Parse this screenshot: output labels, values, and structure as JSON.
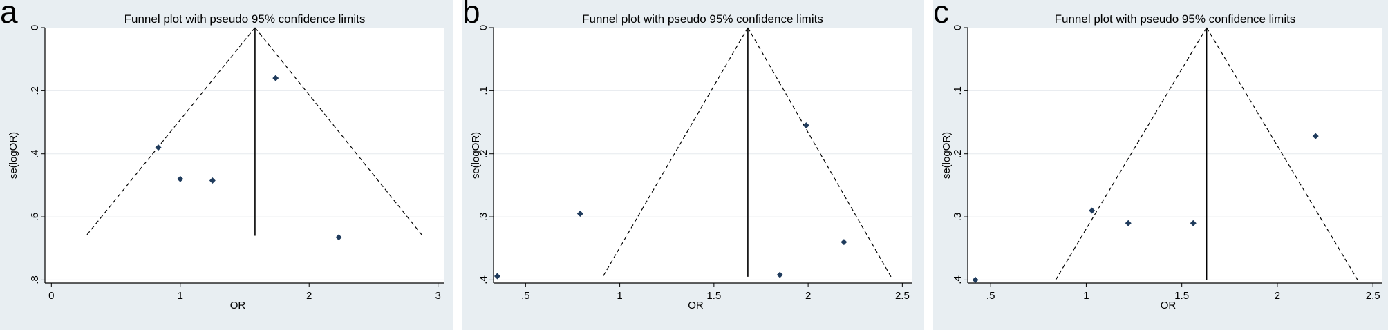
{
  "figure": {
    "panels": [
      {
        "letter": "a"
      },
      {
        "letter": "b"
      },
      {
        "letter": "c"
      }
    ]
  },
  "chart_data": [
    {
      "type": "scatter",
      "title": "Funnel plot with pseudo 95% confidence limits",
      "xlabel": "OR",
      "ylabel": "se(logOR)",
      "xlim": [
        -0.05,
        3.05
      ],
      "ylim": [
        0,
        0.81
      ],
      "y_reversed": true,
      "xticks": [
        0,
        1,
        2,
        3
      ],
      "xtick_labels": [
        "0",
        "1",
        "2",
        "3"
      ],
      "yticks": [
        0,
        0.2,
        0.4,
        0.6,
        0.8
      ],
      "ytick_labels": [
        "0",
        ".2",
        ".4",
        ".6",
        ".8"
      ],
      "grid": true,
      "pooled_estimate": 1.58,
      "ci_limits": {
        "se_max": 0.66,
        "lower_x_at_max": 0.27,
        "upper_x_at_max": 2.88
      },
      "points": [
        {
          "x": 1.74,
          "y": 0.16
        },
        {
          "x": 0.83,
          "y": 0.38
        },
        {
          "x": 1.0,
          "y": 0.48
        },
        {
          "x": 1.25,
          "y": 0.485
        },
        {
          "x": 2.23,
          "y": 0.665
        }
      ]
    },
    {
      "type": "scatter",
      "title": "Funnel plot with pseudo 95% confidence limits",
      "xlabel": "OR",
      "ylabel": "se(logOR)",
      "xlim": [
        0.33,
        2.55
      ],
      "ylim": [
        0,
        0.405
      ],
      "y_reversed": true,
      "xticks": [
        0.5,
        1,
        1.5,
        2,
        2.5
      ],
      "xtick_labels": [
        ".5",
        "1",
        "1.5",
        "2",
        "2.5"
      ],
      "yticks": [
        0,
        0.1,
        0.2,
        0.3,
        0.4
      ],
      "ytick_labels": [
        "0",
        ".1",
        ".2",
        ".3",
        ".4"
      ],
      "grid": true,
      "pooled_estimate": 1.68,
      "ci_limits": {
        "se_max": 0.395,
        "lower_x_at_max": 0.91,
        "upper_x_at_max": 2.44
      },
      "points": [
        {
          "x": 1.99,
          "y": 0.155
        },
        {
          "x": 0.79,
          "y": 0.295
        },
        {
          "x": 2.19,
          "y": 0.34
        },
        {
          "x": 1.85,
          "y": 0.392
        },
        {
          "x": 0.35,
          "y": 0.394
        }
      ]
    },
    {
      "type": "scatter",
      "title": "Funnel plot with pseudo 95% confidence limits",
      "xlabel": "OR",
      "ylabel": "se(logOR)",
      "xlim": [
        0.38,
        2.55
      ],
      "ylim": [
        0,
        0.405
      ],
      "y_reversed": true,
      "xticks": [
        0.5,
        1,
        1.5,
        2,
        2.5
      ],
      "xtick_labels": [
        ".5",
        "1",
        "1.5",
        "2",
        "2.5"
      ],
      "yticks": [
        0,
        0.1,
        0.2,
        0.3,
        0.4
      ],
      "ytick_labels": [
        "0",
        ".1",
        ".2",
        ".3",
        ".4"
      ],
      "grid": true,
      "pooled_estimate": 1.63,
      "ci_limits": {
        "se_max": 0.4,
        "lower_x_at_max": 0.84,
        "upper_x_at_max": 2.42
      },
      "points": [
        {
          "x": 2.2,
          "y": 0.172
        },
        {
          "x": 1.03,
          "y": 0.29
        },
        {
          "x": 1.22,
          "y": 0.31
        },
        {
          "x": 1.56,
          "y": 0.31
        },
        {
          "x": 0.42,
          "y": 0.4
        }
      ]
    }
  ]
}
